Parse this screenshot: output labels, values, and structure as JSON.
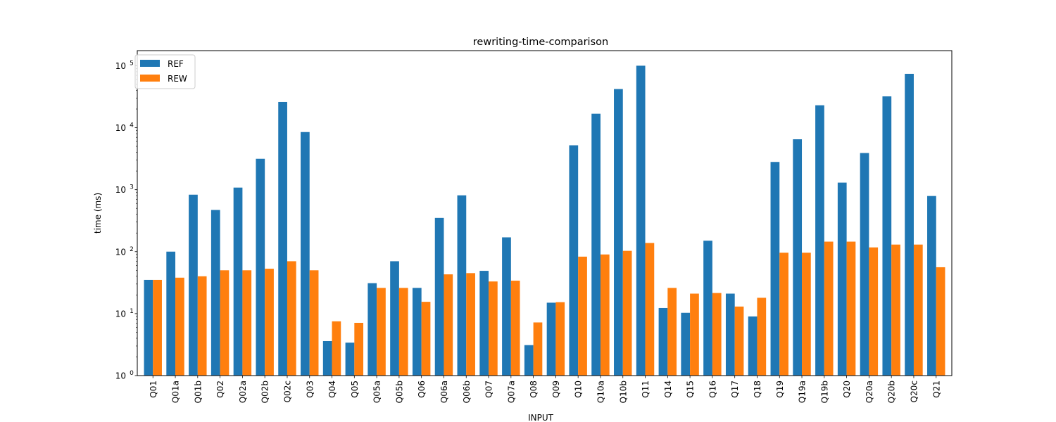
{
  "chart_data": {
    "type": "bar",
    "title": "rewriting-time-comparison",
    "xlabel": "INPUT",
    "ylabel": "time (ms)",
    "yscale": "log",
    "ylim": [
      1,
      175000
    ],
    "y_ticks": [
      {
        "value": 1,
        "base": "10",
        "exp": "0"
      },
      {
        "value": 10,
        "base": "10",
        "exp": "1"
      },
      {
        "value": 100,
        "base": "10",
        "exp": "2"
      },
      {
        "value": 1000,
        "base": "10",
        "exp": "3"
      },
      {
        "value": 10000,
        "base": "10",
        "exp": "4"
      },
      {
        "value": 100000,
        "base": "10",
        "exp": "5"
      }
    ],
    "legend_position": "top-left",
    "categories": [
      "Q01",
      "Q01a",
      "Q01b",
      "Q02",
      "Q02a",
      "Q02b",
      "Q02c",
      "Q03",
      "Q04",
      "Q05",
      "Q05a",
      "Q05b",
      "Q06",
      "Q06a",
      "Q06b",
      "Q07",
      "Q07a",
      "Q08",
      "Q09",
      "Q10",
      "Q10a",
      "Q10b",
      "Q11",
      "Q14",
      "Q15",
      "Q16",
      "Q17",
      "Q18",
      "Q19",
      "Q19a",
      "Q19b",
      "Q20",
      "Q20a",
      "Q20b",
      "Q20c",
      "Q21"
    ],
    "series": [
      {
        "name": "REF",
        "color": "#1f77b4",
        "values": [
          35,
          100,
          830,
          470,
          1080,
          3150,
          26000,
          8500,
          3.6,
          3.4,
          31,
          70,
          26,
          350,
          810,
          49,
          170,
          3.1,
          15,
          5200,
          16800,
          42000,
          100000,
          12.3,
          10.3,
          150,
          21,
          9,
          2800,
          6500,
          23000,
          1300,
          3900,
          32000,
          74000,
          790
        ]
      },
      {
        "name": "REW",
        "color": "#ff7f0e",
        "values": [
          35,
          38,
          40,
          50,
          50,
          53,
          70,
          50,
          7.5,
          7.1,
          26,
          26,
          15.5,
          43,
          45,
          33,
          34,
          7.2,
          15.3,
          83,
          90,
          103,
          138,
          26,
          21,
          21.5,
          13,
          18,
          96,
          96,
          145,
          145,
          117,
          130,
          130,
          56
        ]
      }
    ]
  }
}
